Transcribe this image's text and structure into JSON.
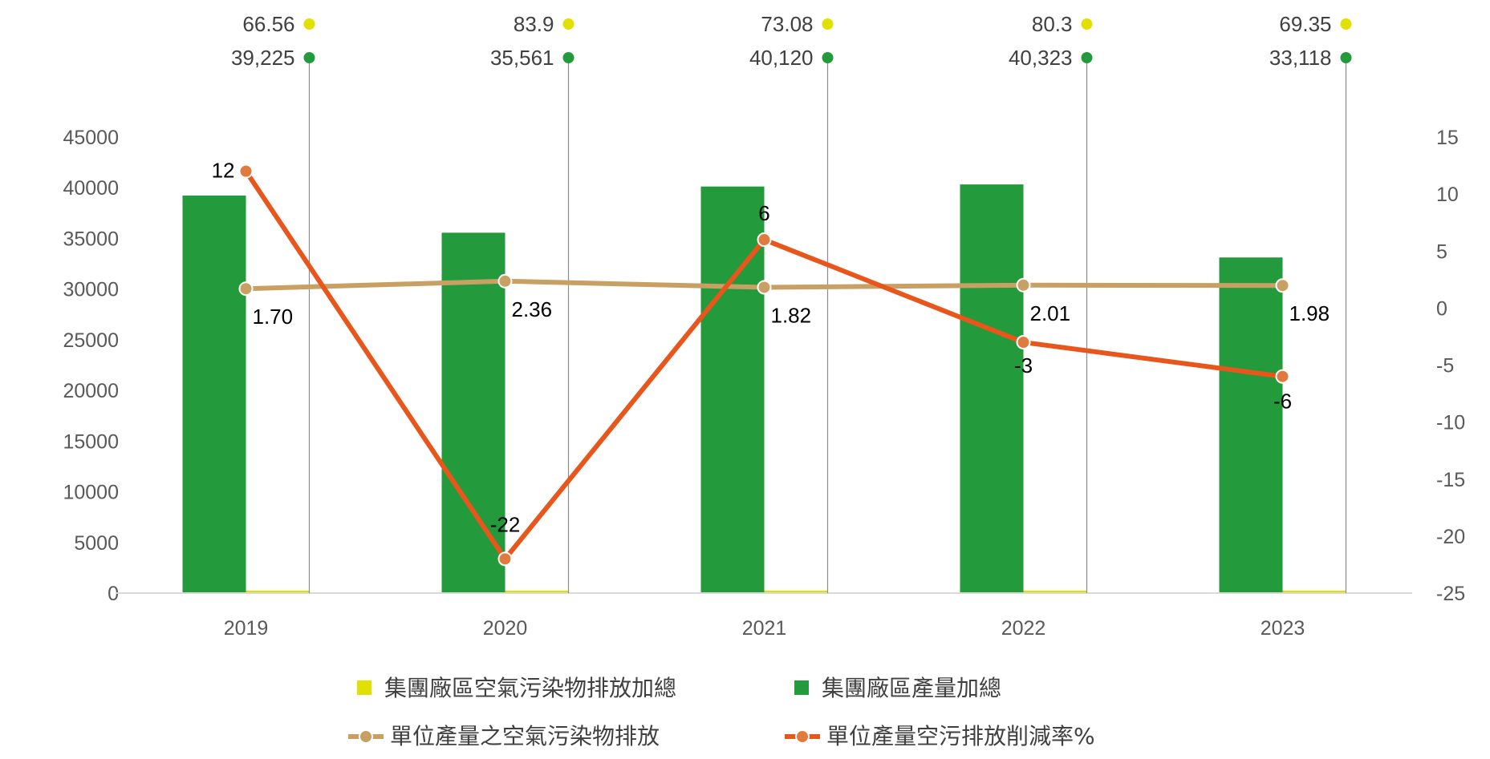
{
  "chart_data": {
    "type": "bar",
    "categories": [
      "2019",
      "2020",
      "2021",
      "2022",
      "2023"
    ],
    "left_axis": {
      "min": 0,
      "max": 45000,
      "step": 5000
    },
    "right_axis": {
      "min": -25,
      "max": 15,
      "step": 5
    },
    "series": [
      {
        "name": "集團廠區空氣污染物排放加總",
        "kind": "bar",
        "axis": "left",
        "color": "#E1E000",
        "values": [
          66.56,
          83.9,
          73.08,
          80.3,
          69.35
        ],
        "labels": [
          "66.56",
          "83.9",
          "73.08",
          "80.3",
          "69.35"
        ]
      },
      {
        "name": "集團廠區產量加總",
        "kind": "bar",
        "axis": "left",
        "color": "#239A3B",
        "values": [
          39225,
          35561,
          40120,
          40323,
          33118
        ],
        "labels": [
          "39,225",
          "35,561",
          "40,120",
          "40,323",
          "33,118"
        ]
      },
      {
        "name": "單位產量之空氣污染物排放",
        "kind": "line",
        "axis": "right",
        "color": "#C9A063",
        "values": [
          1.7,
          2.36,
          1.82,
          2.01,
          1.98
        ],
        "labels": [
          "1.70",
          "2.36",
          "1.82",
          "2.01",
          "1.98"
        ]
      },
      {
        "name": "單位產量空污排放削減率%",
        "kind": "line",
        "axis": "right",
        "color": "#E8561C",
        "values": [
          12,
          -22,
          6,
          -3,
          -6
        ],
        "labels": [
          "12",
          "-22",
          "6",
          "-3",
          "-6"
        ]
      }
    ]
  }
}
